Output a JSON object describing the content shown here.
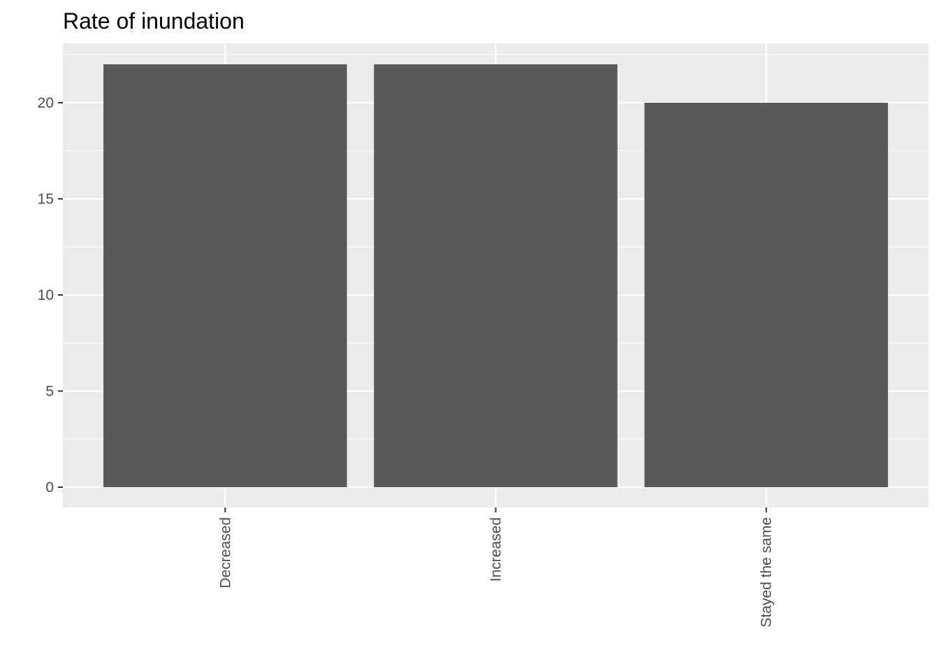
{
  "chart_data": {
    "type": "bar",
    "title": "Rate of inundation",
    "xlabel": "",
    "ylabel": "",
    "categories": [
      "Decreased",
      "Increased",
      "Stayed the same"
    ],
    "values": [
      22,
      22,
      20
    ],
    "ylim": [
      0,
      23.1
    ],
    "yticks": [
      0,
      5,
      10,
      15,
      20
    ],
    "grid": true,
    "legend": "none",
    "x_tick_rotation": -90,
    "colors": {
      "panel_background": "#ebebeb",
      "grid": "#ffffff",
      "bar_fill": "#595959",
      "tick_text": "#4d4d4d",
      "tick_mark": "#333333",
      "title_text": "#000000"
    }
  }
}
